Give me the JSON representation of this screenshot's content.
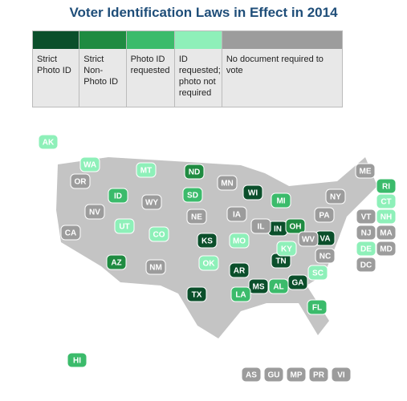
{
  "title": "Voter Identification Laws in Effect in 2014",
  "legend": {
    "items": [
      {
        "label": "Strict Photo ID",
        "color": "#0b4f2b",
        "states": [
          "WI",
          "KS",
          "IN",
          "VA",
          "TX",
          "MS",
          "GA",
          "TN",
          "AR"
        ]
      },
      {
        "label": "Strict Non-Photo ID",
        "color": "#1f8b41",
        "states": [
          "ND",
          "OH",
          "AZ"
        ]
      },
      {
        "label": "Photo ID requested",
        "color": "#3bbb6b",
        "states": [
          "ID",
          "SD",
          "MI",
          "LA",
          "FL",
          "AL",
          "HI",
          "RI"
        ]
      },
      {
        "label": "ID requested; photo not required",
        "color": "#8ef0b9",
        "states": [
          "AK",
          "WA",
          "MT",
          "UT",
          "CO",
          "OK",
          "MO",
          "KY",
          "SC",
          "CT",
          "NH",
          "DE"
        ]
      },
      {
        "label": "No document required to vote",
        "color": "#9c9c9c",
        "states": [
          "OR",
          "CA",
          "NV",
          "WY",
          "NM",
          "NE",
          "MN",
          "IA",
          "IL",
          "WV",
          "NC",
          "PA",
          "NY",
          "ME",
          "VT",
          "NJ",
          "MA",
          "MD",
          "DC",
          "AS",
          "GU",
          "MP",
          "PR",
          "VI"
        ]
      }
    ]
  }
}
